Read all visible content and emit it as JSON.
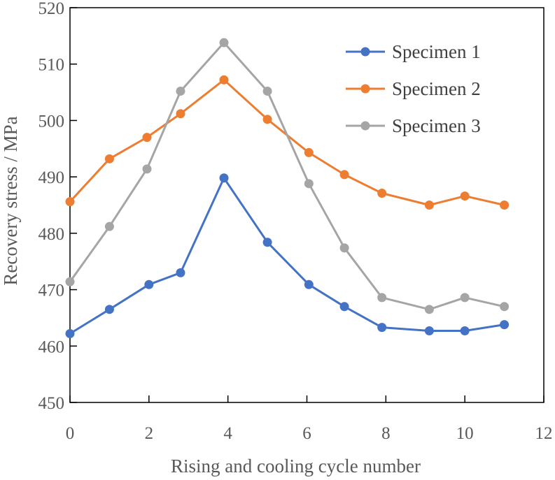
{
  "chart_data": {
    "type": "line",
    "title": "",
    "xlabel": "Rising and cooling cycle number",
    "ylabel": "Recovery stress / MPa",
    "xlim": [
      0,
      12
    ],
    "ylim": [
      450,
      520
    ],
    "xticks": [
      0,
      2,
      4,
      6,
      8,
      10,
      12
    ],
    "yticks": [
      450,
      460,
      470,
      480,
      490,
      500,
      510,
      520
    ],
    "grid": false,
    "legend_position": "top-right",
    "series": [
      {
        "name": "Specimen 1",
        "color": "#4472C4",
        "x": [
          0,
          1,
          2,
          2.8,
          3.9,
          5,
          6.05,
          6.95,
          7.9,
          9.1,
          10,
          11
        ],
        "y": [
          462.2,
          466.5,
          470.9,
          473.0,
          489.8,
          478.4,
          470.9,
          467.0,
          463.3,
          462.7,
          462.7,
          463.8
        ]
      },
      {
        "name": "Specimen 2",
        "color": "#ED7D31",
        "x": [
          0,
          1,
          1.95,
          2.8,
          3.9,
          5,
          6.05,
          6.95,
          7.9,
          9.1,
          10,
          11
        ],
        "y": [
          485.6,
          493.2,
          497.0,
          501.2,
          507.2,
          500.2,
          494.3,
          490.4,
          487.1,
          485.0,
          486.6,
          485.0
        ]
      },
      {
        "name": "Specimen 3",
        "color": "#A5A5A5",
        "x": [
          0,
          1,
          1.95,
          2.8,
          3.9,
          5,
          6.05,
          6.95,
          7.9,
          9.1,
          10,
          11
        ],
        "y": [
          471.4,
          481.2,
          491.4,
          505.2,
          513.8,
          505.2,
          488.8,
          477.4,
          468.6,
          466.5,
          468.6,
          467.0
        ]
      }
    ]
  }
}
